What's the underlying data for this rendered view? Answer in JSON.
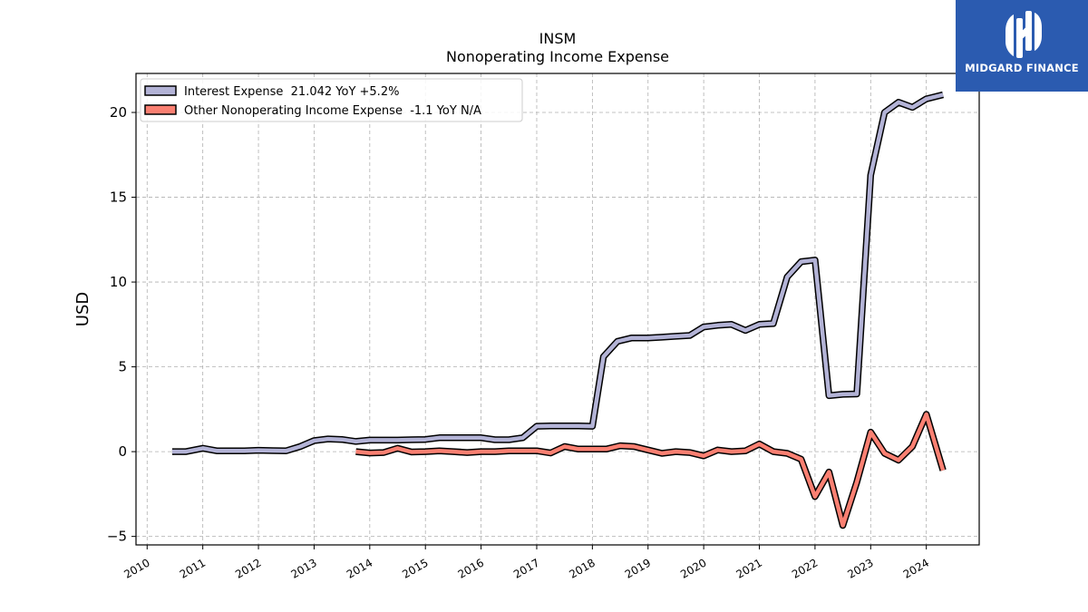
{
  "brand": {
    "name": "MIDGARD FINANCE",
    "logo_icon": "midgard-monogram-icon",
    "logo_color": "#2b5bb0"
  },
  "chart_data": {
    "type": "line",
    "title": "INSM",
    "subtitle": "Nonoperating Income Expense",
    "xlabel": "",
    "ylabel": "USD",
    "xlim": [
      2009.8,
      2024.95
    ],
    "ylim": [
      -5.5,
      22.3
    ],
    "x_ticks": [
      "2010",
      "2011",
      "2012",
      "2013",
      "2014",
      "2015",
      "2016",
      "2017",
      "2018",
      "2019",
      "2020",
      "2021",
      "2022",
      "2023",
      "2024"
    ],
    "y_ticks": [
      -5,
      0,
      5,
      10,
      15,
      20
    ],
    "grid": true,
    "legend_position": "top-left",
    "series": [
      {
        "name": "Interest Expense  21.042 YoY +5.2%",
        "color": "#b3b3d6",
        "x": [
          2010.45,
          2010.7,
          2011.0,
          2011.25,
          2011.5,
          2011.75,
          2012.0,
          2012.25,
          2012.5,
          2012.75,
          2013.0,
          2013.25,
          2013.5,
          2013.75,
          2014.0,
          2014.25,
          2014.5,
          2014.75,
          2015.0,
          2015.25,
          2015.5,
          2015.75,
          2016.0,
          2016.25,
          2016.5,
          2016.75,
          2017.0,
          2017.25,
          2017.5,
          2017.75,
          2018.0,
          2018.2,
          2018.45,
          2018.7,
          2019.0,
          2019.25,
          2019.5,
          2019.75,
          2020.0,
          2020.25,
          2020.5,
          2020.75,
          2021.0,
          2021.25,
          2021.5,
          2021.75,
          2022.0,
          2022.25,
          2022.5,
          2022.75,
          2023.0,
          2023.25,
          2023.5,
          2023.75,
          2024.0,
          2024.3
        ],
        "values": [
          0.0,
          0.0,
          0.2,
          0.05,
          0.05,
          0.05,
          0.08,
          0.06,
          0.05,
          0.3,
          0.65,
          0.75,
          0.72,
          0.6,
          0.68,
          0.68,
          0.68,
          0.7,
          0.72,
          0.82,
          0.82,
          0.82,
          0.82,
          0.7,
          0.7,
          0.82,
          1.5,
          1.52,
          1.52,
          1.52,
          1.5,
          5.6,
          6.5,
          6.7,
          6.7,
          6.75,
          6.8,
          6.85,
          7.35,
          7.45,
          7.5,
          7.15,
          7.5,
          7.55,
          10.3,
          11.2,
          11.3,
          3.3,
          3.38,
          3.4,
          16.3,
          20.0,
          20.6,
          20.3,
          20.8,
          21.042
        ]
      },
      {
        "name": "Other Nonoperating Income Expense  -1.1 YoY N/A",
        "color": "#fa8072",
        "x": [
          2013.75,
          2014.0,
          2014.25,
          2014.5,
          2014.75,
          2015.0,
          2015.25,
          2015.5,
          2015.75,
          2016.0,
          2016.25,
          2016.5,
          2016.75,
          2017.0,
          2017.25,
          2017.5,
          2017.75,
          2018.0,
          2018.25,
          2018.5,
          2018.75,
          2019.0,
          2019.25,
          2019.5,
          2019.75,
          2020.0,
          2020.25,
          2020.5,
          2020.75,
          2021.0,
          2021.25,
          2021.5,
          2021.75,
          2022.0,
          2022.25,
          2022.5,
          2022.75,
          2023.0,
          2023.25,
          2023.5,
          2023.75,
          2024.0,
          2024.3
        ],
        "values": [
          0.0,
          -0.08,
          -0.05,
          0.2,
          -0.02,
          0.0,
          0.05,
          0.0,
          -0.05,
          0.0,
          0.0,
          0.05,
          0.05,
          0.05,
          -0.08,
          0.3,
          0.15,
          0.15,
          0.15,
          0.35,
          0.3,
          0.1,
          -0.1,
          0.0,
          -0.05,
          -0.25,
          0.1,
          0.0,
          0.05,
          0.45,
          0.0,
          -0.1,
          -0.45,
          -2.65,
          -1.2,
          -4.35,
          -1.8,
          1.15,
          -0.1,
          -0.5,
          0.3,
          2.2,
          -1.1
        ]
      }
    ]
  }
}
